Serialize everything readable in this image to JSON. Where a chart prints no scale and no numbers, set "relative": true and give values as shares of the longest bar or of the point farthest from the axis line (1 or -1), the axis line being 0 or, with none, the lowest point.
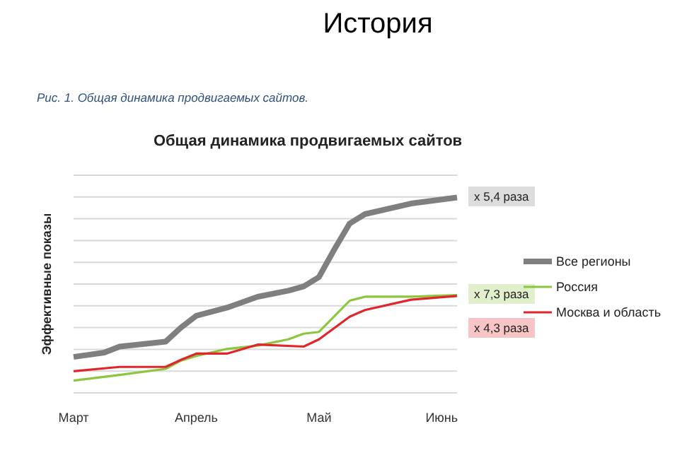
{
  "chart_data": {
    "type": "line",
    "title": "Общая динамика продвигаемых сайтов",
    "ylabel": "Эффективные показы",
    "annotations": [
      "История",
      "Рис. 1. Общая динамика продвигаемых сайтов.",
      "x 5,4 раза",
      "x 7,3 раза",
      "x 4,3 раза"
    ],
    "relative": true,
    "categories": [
      "Март",
      null,
      null,
      null,
      null,
      null,
      null,
      null,
      "Апрель",
      null,
      null,
      null,
      null,
      null,
      null,
      null,
      "Май",
      null,
      null,
      null,
      null,
      null,
      null,
      null,
      "Июнь",
      null
    ],
    "series": [
      {
        "name": "Все регионы",
        "color": "#7f7f7f",
        "values": [
          0.184,
          null,
          0.206,
          0.237,
          null,
          null,
          0.262,
          0.334,
          0.395,
          null,
          0.436,
          null,
          0.492,
          null,
          0.523,
          0.545,
          0.593,
          0.734,
          0.867,
          0.915,
          null,
          null,
          0.969,
          null,
          null,
          1
        ]
      },
      {
        "name": "Россия",
        "color": "#8cc63f",
        "values": [
          0.063,
          null,
          null,
          0.092,
          null,
          null,
          0.123,
          0.165,
          0.189,
          null,
          0.225,
          null,
          0.242,
          null,
          0.274,
          0.303,
          0.312,
          null,
          0.472,
          0.492,
          null,
          null,
          0.492,
          null,
          null,
          0.501
        ]
      },
      {
        "name": "Москва и область",
        "color": "#e0262b",
        "values": [
          0.111,
          null,
          null,
          0.133,
          null,
          null,
          0.133,
          0.169,
          0.201,
          null,
          0.201,
          null,
          0.247,
          null,
          null,
          0.237,
          0.274,
          null,
          0.39,
          0.424,
          null,
          null,
          0.477,
          null,
          null,
          0.496
        ]
      }
    ],
    "grid": "y",
    "legend": "right",
    "marker": "none",
    "line_style": "solid"
  }
}
